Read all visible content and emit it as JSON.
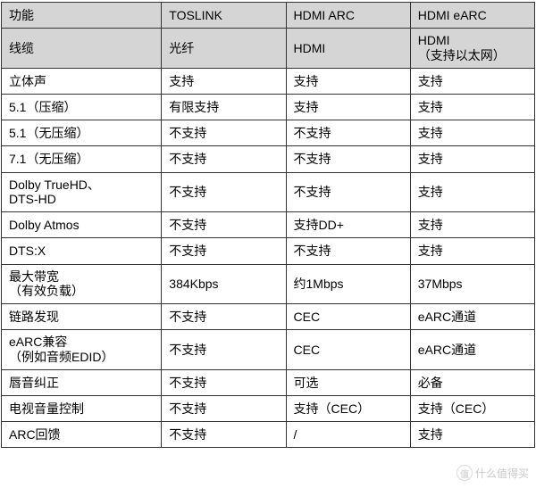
{
  "table": {
    "header_bg": "#d5d5d5",
    "border_color": "#333333",
    "text_color": "#000000",
    "fontsize": 14,
    "columns": [
      "功能",
      "TOSLINK",
      "HDMI ARC",
      "HDMI eARC"
    ],
    "header_rows": [
      {
        "feature": "功能",
        "toslink": "TOSLINK",
        "arc": "HDMI ARC",
        "earc": "HDMI eARC"
      },
      {
        "feature": "线缆",
        "toslink": "光纤",
        "arc": "HDMI",
        "earc": "HDMI\n（支持以太网）"
      }
    ],
    "rows": [
      {
        "feature": "立体声",
        "toslink": "支持",
        "arc": "支持",
        "earc": "支持"
      },
      {
        "feature": "5.1（压缩）",
        "toslink": "有限支持",
        "arc": "支持",
        "earc": "支持"
      },
      {
        "feature": "5.1（无压缩）",
        "toslink": "不支持",
        "arc": "不支持",
        "earc": "支持"
      },
      {
        "feature": "7.1（无压缩）",
        "toslink": "不支持",
        "arc": "不支持",
        "earc": "支持"
      },
      {
        "feature": "Dolby TrueHD、\nDTS-HD",
        "toslink": "不支持",
        "arc": "不支持",
        "earc": "支持"
      },
      {
        "feature": "Dolby Atmos",
        "toslink": "不支持",
        "arc": "支持DD+",
        "earc": "支持"
      },
      {
        "feature": "DTS:X",
        "toslink": "不支持",
        "arc": "不支持",
        "earc": "支持"
      },
      {
        "feature": "最大带宽\n（有效负载）",
        "toslink": "384Kbps",
        "arc": "约1Mbps",
        "earc": "37Mbps"
      },
      {
        "feature": "链路发现",
        "toslink": "不支持",
        "arc": "CEC",
        "earc": "eARC通道"
      },
      {
        "feature": "eARC兼容\n（例如音频EDID）",
        "toslink": "不支持",
        "arc": "CEC",
        "earc": "eARC通道"
      },
      {
        "feature": "唇音纠正",
        "toslink": "不支持",
        "arc": "可选",
        "earc": "必备"
      },
      {
        "feature": "电视音量控制",
        "toslink": "不支持",
        "arc": "支持（CEC）",
        "earc": "支持（CEC）"
      },
      {
        "feature": "ARC回馈",
        "toslink": "不支持",
        "arc": "/",
        "earc": "支持"
      }
    ]
  },
  "watermark": {
    "badge": "值",
    "text": "什么值得买"
  }
}
